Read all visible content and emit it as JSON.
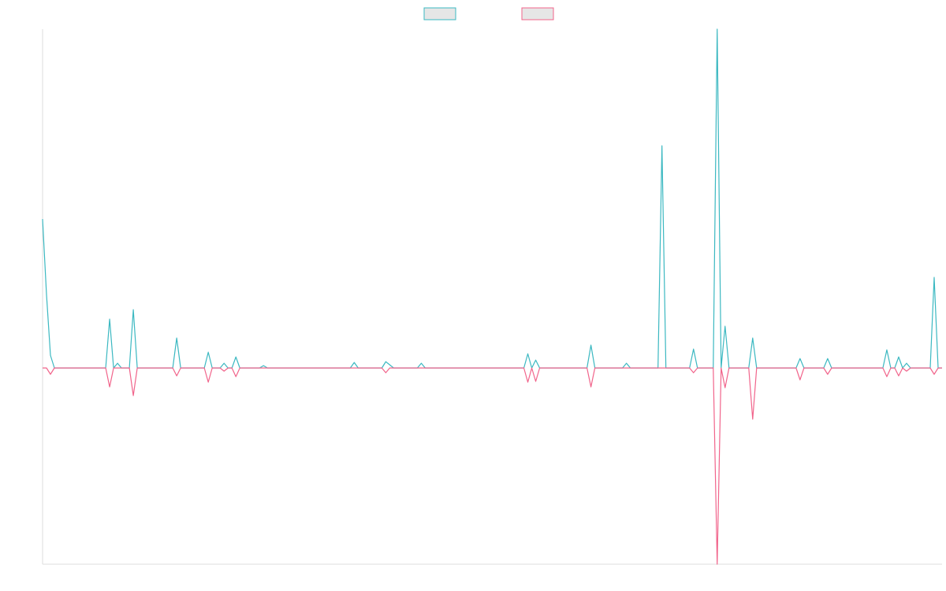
{
  "chart_data": {
    "type": "line",
    "legend": "top",
    "ylim": [
      -249,
      430
    ],
    "categories": [
      null,
      null,
      null,
      null,
      null,
      null,
      null,
      null,
      null,
      null,
      null,
      null,
      null,
      null,
      null,
      null,
      null,
      null,
      null,
      null,
      null,
      null,
      null,
      null,
      null,
      null,
      null,
      null,
      null,
      null,
      null,
      null,
      null,
      null,
      null,
      null,
      null,
      null,
      null,
      null,
      null,
      null,
      null,
      null,
      null,
      null,
      null,
      null,
      null,
      null,
      null,
      null,
      null,
      null,
      null,
      null,
      null,
      null,
      null,
      null,
      null,
      null,
      null,
      null,
      null,
      null,
      null,
      null,
      null,
      null,
      null,
      null,
      null,
      null,
      null,
      null,
      null,
      null,
      null,
      null,
      null,
      null,
      null,
      null,
      null,
      null,
      null,
      null,
      null,
      null,
      null,
      null,
      null,
      null,
      null,
      null,
      null,
      null,
      null,
      null,
      null,
      null,
      null,
      null,
      null,
      null,
      null,
      null,
      null,
      null,
      null,
      null,
      null,
      null,
      null,
      null,
      null,
      null,
      null,
      null,
      null,
      null,
      null,
      null,
      null,
      null,
      null,
      null,
      null,
      null,
      null,
      null,
      null,
      null,
      null,
      null,
      null,
      null,
      null,
      null,
      null,
      null,
      null,
      null,
      null,
      null,
      null,
      null,
      null,
      null,
      null,
      null,
      null,
      null,
      null,
      null,
      null,
      null,
      null,
      null,
      null,
      null,
      null,
      null,
      null,
      null,
      null,
      null,
      null,
      null,
      null,
      null,
      null,
      null,
      null,
      null,
      null,
      null,
      null,
      null,
      null,
      null,
      null,
      null,
      null,
      null,
      null,
      null,
      null,
      null,
      null,
      null,
      null,
      null,
      null,
      null,
      null,
      null,
      null,
      null,
      null,
      null,
      null,
      null,
      null,
      null,
      null,
      null,
      null,
      null,
      null,
      null,
      null,
      null,
      null,
      null,
      null,
      null,
      null,
      null,
      null,
      null,
      null,
      null,
      null,
      null,
      null,
      null,
      null
    ],
    "series": [
      {
        "color": "#3bb8c1",
        "values": [
          189,
          93,
          16,
          0,
          0,
          0,
          0,
          0,
          0,
          0,
          0,
          0,
          0,
          0,
          0,
          0,
          0,
          62,
          0,
          6,
          0,
          0,
          0,
          74,
          0,
          0,
          0,
          0,
          0,
          0,
          0,
          0,
          0,
          0,
          38,
          0,
          0,
          0,
          0,
          0,
          0,
          0,
          20,
          0,
          0,
          0,
          6,
          0,
          0,
          14,
          0,
          0,
          0,
          0,
          0,
          0,
          3,
          0,
          0,
          0,
          0,
          0,
          0,
          0,
          0,
          0,
          0,
          0,
          0,
          0,
          0,
          0,
          0,
          0,
          0,
          0,
          0,
          0,
          0,
          7,
          0,
          0,
          0,
          0,
          0,
          0,
          0,
          8,
          4,
          0,
          0,
          0,
          0,
          0,
          0,
          0,
          6,
          0,
          0,
          0,
          0,
          0,
          0,
          0,
          0,
          0,
          0,
          0,
          0,
          0,
          0,
          0,
          0,
          0,
          0,
          0,
          0,
          0,
          0,
          0,
          0,
          0,
          0,
          18,
          0,
          10,
          0,
          0,
          0,
          0,
          0,
          0,
          0,
          0,
          0,
          0,
          0,
          0,
          0,
          29,
          0,
          0,
          0,
          0,
          0,
          0,
          0,
          0,
          6,
          0,
          0,
          0,
          0,
          0,
          0,
          0,
          0,
          282,
          0,
          0,
          0,
          0,
          0,
          0,
          0,
          24,
          0,
          0,
          0,
          0,
          0,
          430,
          0,
          53,
          0,
          0,
          0,
          0,
          0,
          0,
          38,
          0,
          0,
          0,
          0,
          0,
          0,
          0,
          0,
          0,
          0,
          0,
          12,
          0,
          0,
          0,
          0,
          0,
          0,
          12,
          0,
          0,
          0,
          0,
          0,
          0,
          0,
          0,
          0,
          0,
          0,
          0,
          0,
          0,
          23,
          0,
          0,
          14,
          0,
          6,
          0,
          0,
          0,
          0,
          0,
          0,
          115,
          0,
          0
        ]
      },
      {
        "color": "#f1648b",
        "values": [
          0,
          0,
          -8,
          0,
          0,
          0,
          0,
          0,
          0,
          0,
          0,
          0,
          0,
          0,
          0,
          0,
          0,
          -24,
          0,
          0,
          0,
          0,
          0,
          -35,
          0,
          0,
          0,
          0,
          0,
          0,
          0,
          0,
          0,
          0,
          -10,
          0,
          0,
          0,
          0,
          0,
          0,
          0,
          -18,
          0,
          0,
          0,
          -4,
          0,
          0,
          -11,
          0,
          0,
          0,
          0,
          0,
          0,
          0,
          0,
          0,
          0,
          0,
          0,
          0,
          0,
          0,
          0,
          0,
          0,
          0,
          0,
          0,
          0,
          0,
          0,
          0,
          0,
          0,
          0,
          0,
          0,
          0,
          0,
          0,
          0,
          0,
          0,
          0,
          -6,
          0,
          0,
          0,
          0,
          0,
          0,
          0,
          0,
          0,
          0,
          0,
          0,
          0,
          0,
          0,
          0,
          0,
          0,
          0,
          0,
          0,
          0,
          0,
          0,
          0,
          0,
          0,
          0,
          0,
          0,
          0,
          0,
          0,
          0,
          0,
          -18,
          0,
          -17,
          0,
          0,
          0,
          0,
          0,
          0,
          0,
          0,
          0,
          0,
          0,
          0,
          0,
          -24,
          0,
          0,
          0,
          0,
          0,
          0,
          0,
          0,
          0,
          0,
          0,
          0,
          0,
          0,
          0,
          0,
          0,
          0,
          0,
          0,
          0,
          0,
          0,
          0,
          0,
          -6,
          0,
          0,
          0,
          0,
          0,
          -249,
          0,
          -25,
          0,
          0,
          0,
          0,
          0,
          0,
          -65,
          0,
          0,
          0,
          0,
          0,
          0,
          0,
          0,
          0,
          0,
          0,
          -15,
          0,
          0,
          0,
          0,
          0,
          0,
          -8,
          0,
          0,
          0,
          0,
          0,
          0,
          0,
          0,
          0,
          0,
          0,
          0,
          0,
          0,
          -11,
          0,
          0,
          -10,
          0,
          -4,
          0,
          0,
          0,
          0,
          0,
          0,
          -8,
          0,
          0
        ]
      }
    ]
  }
}
